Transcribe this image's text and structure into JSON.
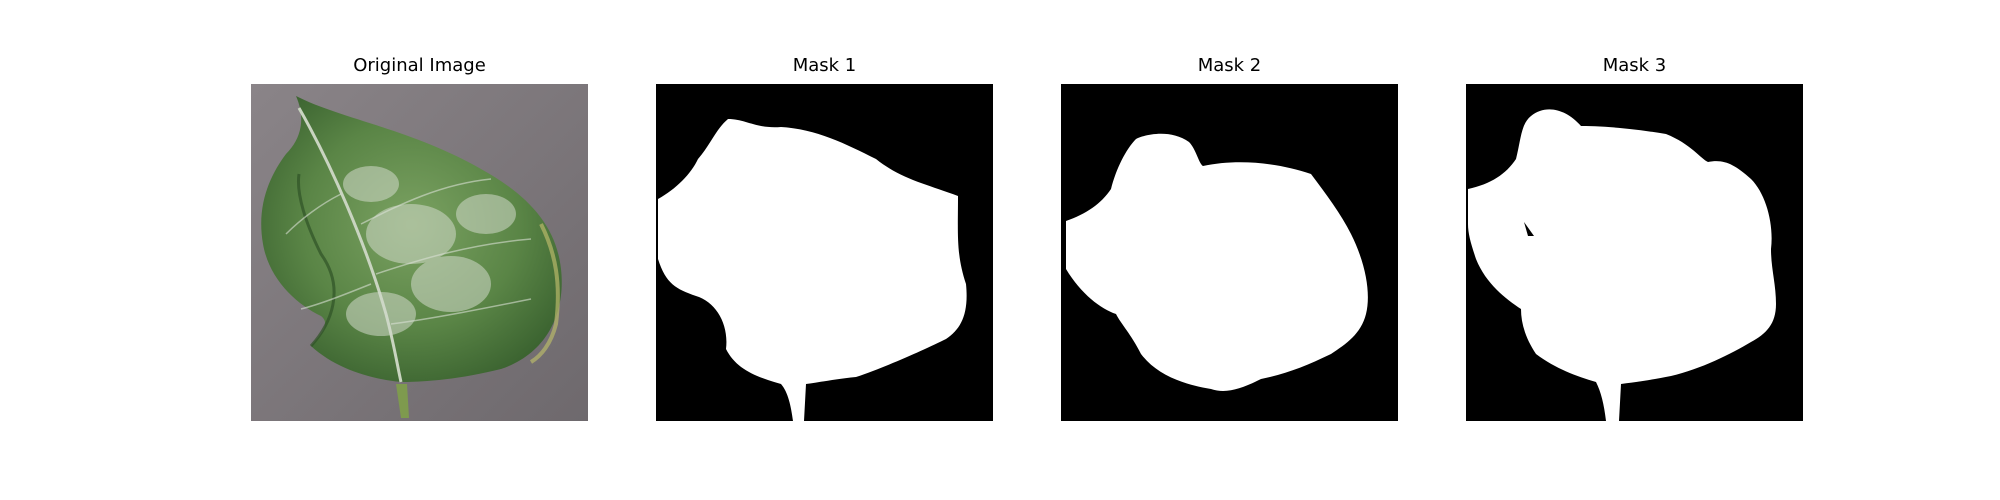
{
  "panels": [
    {
      "title": "Original Image",
      "kind": "photo",
      "subject": "green leaf with white powdery patches on gray background"
    },
    {
      "title": "Mask 1",
      "kind": "mask"
    },
    {
      "title": "Mask 2",
      "kind": "mask"
    },
    {
      "title": "Mask 3",
      "kind": "mask"
    }
  ],
  "colors": {
    "background": "#ffffff",
    "mask_fg": "#ffffff",
    "mask_bg": "#000000",
    "photo_bg": "#7a7579",
    "leaf_dark": "#3f6a33",
    "leaf_light": "#6b9455",
    "powder": "#cdd6c6"
  }
}
